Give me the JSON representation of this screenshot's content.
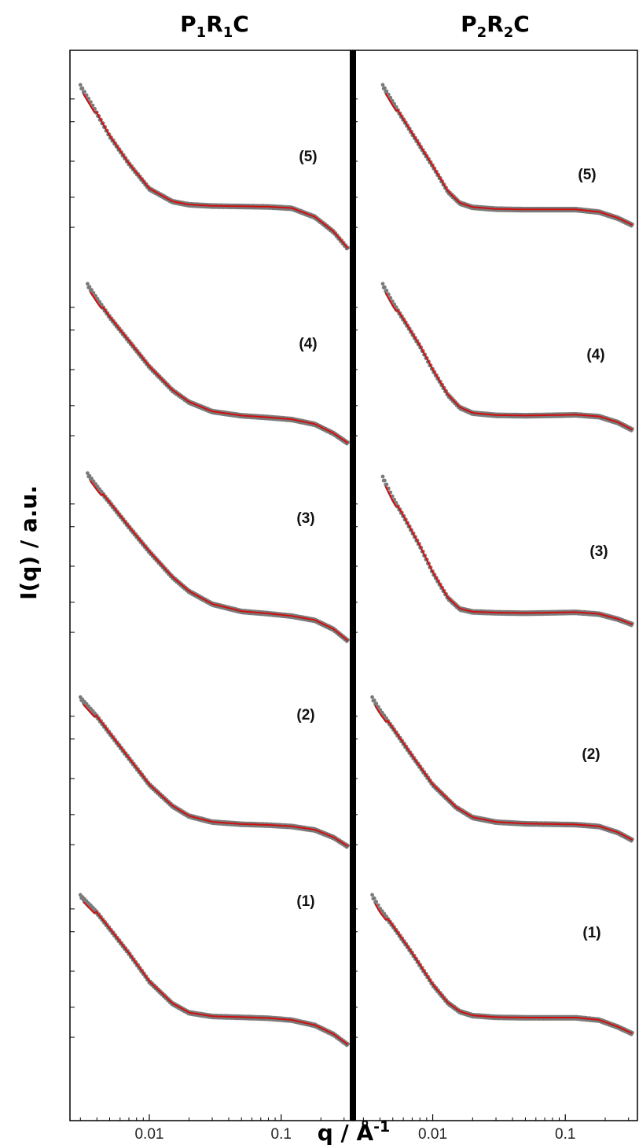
{
  "chart_data": {
    "type": "scatter",
    "x_scale": "log",
    "y_scale": "log",
    "xlim": [
      0.0025,
      0.35
    ],
    "x_tick_values": [
      0.01,
      0.1
    ],
    "x_tick_labels": [
      "0.01",
      "0.1"
    ],
    "xlabel": "q / Å⁻¹",
    "ylabel": "I(q) / a.u.",
    "colors": {
      "data": "#7a7a7a",
      "fit": "#d01010"
    },
    "panels": [
      {
        "title_parts": [
          "P",
          "1",
          "R",
          "1",
          "C"
        ],
        "curves": [
          {
            "label": "(5)",
            "q": [
              0.003,
              0.004,
              0.005,
              0.007,
              0.01,
              0.015,
              0.02,
              0.03,
              0.05,
              0.08,
              0.12,
              0.18,
              0.25,
              0.32
            ],
            "I": [
              3000,
              1300,
              650,
              280,
              130,
              88,
              80,
              77,
              76,
              75,
              72,
              55,
              35,
              21
            ]
          },
          {
            "label": "(4)",
            "q": [
              0.0034,
              0.004,
              0.005,
              0.007,
              0.01,
              0.015,
              0.02,
              0.03,
              0.05,
              0.08,
              0.12,
              0.18,
              0.25,
              0.32
            ],
            "I": [
              4000,
              2600,
              1500,
              720,
              330,
              160,
              112,
              84,
              74,
              70,
              66,
              57,
              43,
              32
            ]
          },
          {
            "label": "(3)",
            "q": [
              0.0034,
              0.004,
              0.005,
              0.007,
              0.01,
              0.015,
              0.02,
              0.03,
              0.05,
              0.08,
              0.12,
              0.18,
              0.25,
              0.32
            ],
            "I": [
              5000,
              3400,
              2100,
              1000,
              470,
              215,
              140,
              95,
              76,
              71,
              66,
              58,
              44,
              31
            ]
          },
          {
            "label": "(2)",
            "q": [
              0.003,
              0.004,
              0.005,
              0.007,
              0.01,
              0.015,
              0.02,
              0.03,
              0.05,
              0.08,
              0.12,
              0.18,
              0.25,
              0.32
            ],
            "I": [
              3500,
              2000,
              1200,
              560,
              250,
              130,
              96,
              80,
              75,
              73,
              70,
              63,
              50,
              38
            ]
          },
          {
            "label": "(1)",
            "q": [
              0.003,
              0.004,
              0.005,
              0.007,
              0.01,
              0.015,
              0.02,
              0.03,
              0.05,
              0.08,
              0.12,
              0.18,
              0.25,
              0.32
            ],
            "I": [
              3000,
              1800,
              1100,
              520,
              220,
              112,
              85,
              76,
              74,
              72,
              68,
              58,
              44,
              32
            ]
          }
        ]
      },
      {
        "title_parts": [
          "P",
          "2",
          "R",
          "2",
          "C"
        ],
        "curves": [
          {
            "label": "(5)",
            "q": [
              0.0042,
              0.005,
              0.007,
              0.01,
              0.013,
              0.016,
              0.02,
              0.03,
              0.05,
              0.08,
              0.12,
              0.18,
              0.25,
              0.32
            ],
            "I": [
              3000,
              1800,
              700,
              260,
              120,
              84,
              74,
              70,
              69,
              69,
              69,
              64,
              53,
              43
            ]
          },
          {
            "label": "(4)",
            "q": [
              0.0042,
              0.005,
              0.006,
              0.008,
              0.01,
              0.013,
              0.016,
              0.02,
              0.03,
              0.05,
              0.08,
              0.12,
              0.18,
              0.25,
              0.32
            ],
            "I": [
              4000,
              2300,
              1400,
              620,
              300,
              140,
              95,
              80,
              75,
              74,
              75,
              76,
              72,
              60,
              48
            ]
          },
          {
            "label": "(3)",
            "q": [
              0.0042,
              0.005,
              0.006,
              0.008,
              0.01,
              0.013,
              0.016,
              0.02,
              0.03,
              0.05,
              0.08,
              0.12,
              0.18,
              0.25,
              0.32
            ],
            "I": [
              4500,
              2400,
              1400,
              560,
              250,
              115,
              82,
              75,
              73,
              72,
              73,
              74,
              70,
              60,
              51
            ]
          },
          {
            "label": "(2)",
            "q": [
              0.0035,
              0.004,
              0.005,
              0.007,
              0.01,
              0.015,
              0.02,
              0.03,
              0.05,
              0.08,
              0.12,
              0.18,
              0.25,
              0.32
            ],
            "I": [
              3500,
              2400,
              1400,
              600,
              250,
              125,
              92,
              80,
              76,
              75,
              74,
              70,
              58,
              46
            ]
          },
          {
            "label": "(1)",
            "q": [
              0.0035,
              0.004,
              0.005,
              0.007,
              0.01,
              0.013,
              0.016,
              0.02,
              0.03,
              0.05,
              0.08,
              0.12,
              0.18,
              0.25,
              0.32
            ],
            "I": [
              3000,
              2000,
              1200,
              520,
              200,
              115,
              88,
              78,
              74,
              73,
              73,
              73,
              68,
              55,
              45
            ]
          }
        ]
      }
    ]
  }
}
